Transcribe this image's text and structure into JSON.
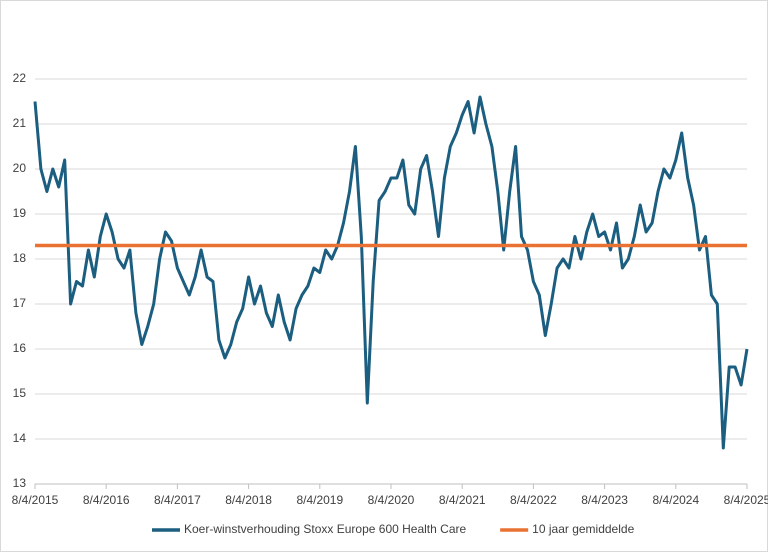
{
  "chart_data": {
    "type": "line",
    "xlim": [
      "2015-04",
      "2025-04"
    ],
    "xticks": [
      {
        "value": "2015-04",
        "label": "8/4/2015"
      },
      {
        "value": "2016-04",
        "label": "8/4/2016"
      },
      {
        "value": "2017-04",
        "label": "8/4/2017"
      },
      {
        "value": "2018-04",
        "label": "8/4/2018"
      },
      {
        "value": "2019-04",
        "label": "8/4/2019"
      },
      {
        "value": "2020-04",
        "label": "8/4/2020"
      },
      {
        "value": "2021-04",
        "label": "8/4/2021"
      },
      {
        "value": "2022-04",
        "label": "8/4/2022"
      },
      {
        "value": "2023-04",
        "label": "8/4/2023"
      },
      {
        "value": "2024-04",
        "label": "8/4/2024"
      },
      {
        "value": "2025-04",
        "label": "8/4/2025"
      }
    ],
    "ylim": [
      13,
      22
    ],
    "yticks": [
      13,
      14,
      15,
      16,
      17,
      18,
      19,
      20,
      21,
      22
    ],
    "grid": true,
    "legend": "bottom",
    "series": [
      {
        "name": "Koer-winstverhouding Stoxx Europe 600 Health Care",
        "color": "#1b5e80",
        "x": [
          "2015-04",
          "2015-05",
          "2015-06",
          "2015-07",
          "2015-08",
          "2015-09",
          "2015-10",
          "2015-11",
          "2015-12",
          "2016-01",
          "2016-02",
          "2016-03",
          "2016-04",
          "2016-05",
          "2016-06",
          "2016-07",
          "2016-08",
          "2016-09",
          "2016-10",
          "2016-11",
          "2016-12",
          "2017-01",
          "2017-02",
          "2017-03",
          "2017-04",
          "2017-05",
          "2017-06",
          "2017-07",
          "2017-08",
          "2017-09",
          "2017-10",
          "2017-11",
          "2017-12",
          "2018-01",
          "2018-02",
          "2018-03",
          "2018-04",
          "2018-05",
          "2018-06",
          "2018-07",
          "2018-08",
          "2018-09",
          "2018-10",
          "2018-11",
          "2018-12",
          "2019-01",
          "2019-02",
          "2019-03",
          "2019-04",
          "2019-05",
          "2019-06",
          "2019-07",
          "2019-08",
          "2019-09",
          "2019-10",
          "2019-11",
          "2019-12",
          "2020-01",
          "2020-02",
          "2020-03",
          "2020-04",
          "2020-05",
          "2020-06",
          "2020-07",
          "2020-08",
          "2020-09",
          "2020-10",
          "2020-11",
          "2020-12",
          "2021-01",
          "2021-02",
          "2021-03",
          "2021-04",
          "2021-05",
          "2021-06",
          "2021-07",
          "2021-08",
          "2021-09",
          "2021-10",
          "2021-11",
          "2021-12",
          "2022-01",
          "2022-02",
          "2022-03",
          "2022-04",
          "2022-05",
          "2022-06",
          "2022-07",
          "2022-08",
          "2022-09",
          "2022-10",
          "2022-11",
          "2022-12",
          "2023-01",
          "2023-02",
          "2023-03",
          "2023-04",
          "2023-05",
          "2023-06",
          "2023-07",
          "2023-08",
          "2023-09",
          "2023-10",
          "2023-11",
          "2023-12",
          "2024-01",
          "2024-02",
          "2024-03",
          "2024-04",
          "2024-05",
          "2024-06",
          "2024-07",
          "2024-08",
          "2024-09",
          "2024-10",
          "2024-11",
          "2024-12",
          "2025-01",
          "2025-02",
          "2025-03",
          "2025-04"
        ],
        "values": [
          21.5,
          20.0,
          19.5,
          20.0,
          19.6,
          20.2,
          17.0,
          17.5,
          17.4,
          18.2,
          17.6,
          18.5,
          19.0,
          18.6,
          18.0,
          17.8,
          18.2,
          16.8,
          16.1,
          16.5,
          17.0,
          18.0,
          18.6,
          18.4,
          17.8,
          17.5,
          17.2,
          17.6,
          18.2,
          17.6,
          17.5,
          16.2,
          15.8,
          16.1,
          16.6,
          16.9,
          17.6,
          17.0,
          17.4,
          16.8,
          16.5,
          17.2,
          16.6,
          16.2,
          16.9,
          17.2,
          17.4,
          17.8,
          17.7,
          18.2,
          18.0,
          18.3,
          18.8,
          19.5,
          20.5,
          18.5,
          14.8,
          17.5,
          19.3,
          19.5,
          19.8,
          19.8,
          20.2,
          19.2,
          19.0,
          20.0,
          20.3,
          19.5,
          18.5,
          19.8,
          20.5,
          20.8,
          21.2,
          21.5,
          20.8,
          21.6,
          21.0,
          20.5,
          19.5,
          18.2,
          19.5,
          20.5,
          18.5,
          18.2,
          17.5,
          17.2,
          16.3,
          17.0,
          17.8,
          18.0,
          17.8,
          18.5,
          18.0,
          18.6,
          19.0,
          18.5,
          18.6,
          18.2,
          18.8,
          17.8,
          18.0,
          18.5,
          19.2,
          18.6,
          18.8,
          19.5,
          20.0,
          19.8,
          20.2,
          20.8,
          19.8,
          19.2,
          18.2,
          18.5,
          17.2,
          17.0,
          13.8,
          15.6,
          15.6,
          15.2,
          16.0
        ]
      },
      {
        "name": "10 jaar gemiddelde",
        "color": "#e97132",
        "x": [
          "2015-04",
          "2025-04"
        ],
        "values": [
          18.3,
          18.3
        ]
      }
    ]
  }
}
